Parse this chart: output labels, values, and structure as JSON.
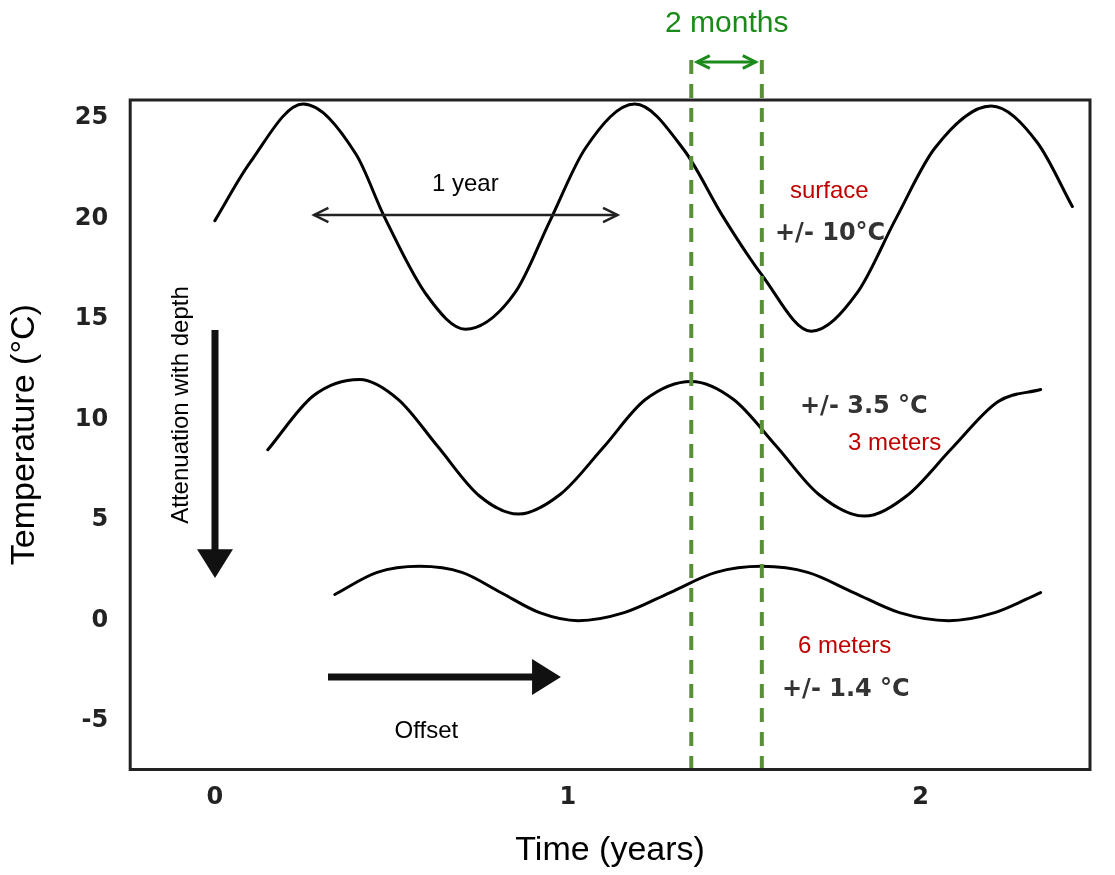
{
  "chart_data": {
    "type": "line",
    "xlabel": "Time (years)",
    "ylabel": "Temperature (°C)",
    "xlim": [
      -0.24,
      2.48
    ],
    "xticks": [
      0,
      1,
      2
    ],
    "ylim": [
      -7.4,
      25.9
    ],
    "yticks": [
      -5,
      0,
      5,
      10,
      15,
      20,
      25
    ],
    "grid": false,
    "legend": false,
    "marker": "none",
    "line_style": "solid",
    "series": [
      {
        "name": "surface",
        "color": "#000000",
        "x": [
          0,
          0.1,
          0.25,
          0.4,
          0.48,
          0.6,
          0.71,
          0.85,
          0.95,
          1.05,
          1.19,
          1.33,
          1.44,
          1.55,
          1.69,
          1.82,
          1.93,
          2.04,
          2.2,
          2.33,
          2.43
        ],
        "values": [
          19.9,
          22.8,
          25.7,
          23.2,
          20.1,
          16.2,
          14.5,
          16.3,
          19.9,
          23.5,
          25.7,
          23.4,
          20.1,
          17.2,
          14.4,
          16.3,
          20.0,
          23.5,
          25.6,
          23.8,
          20.6
        ]
      },
      {
        "name": "3 meters",
        "color": "#000000",
        "x": [
          0.15,
          0.28,
          0.41,
          0.52,
          0.63,
          0.75,
          0.86,
          0.98,
          1.1,
          1.22,
          1.35,
          1.47,
          1.59,
          1.71,
          1.84,
          1.96,
          2.09,
          2.22,
          2.34
        ],
        "values": [
          8.5,
          11.2,
          12.0,
          11.0,
          8.7,
          6.2,
          5.3,
          6.3,
          8.6,
          11.0,
          11.9,
          11.0,
          8.7,
          6.3,
          5.2,
          6.2,
          8.6,
          10.9,
          11.5
        ]
      },
      {
        "name": "6 meters",
        "color": "#000000",
        "x": [
          0.34,
          0.46,
          0.58,
          0.7,
          0.81,
          0.92,
          1.03,
          1.16,
          1.29,
          1.42,
          1.55,
          1.68,
          1.81,
          1.94,
          2.08,
          2.21,
          2.34
        ],
        "values": [
          1.3,
          2.4,
          2.7,
          2.4,
          1.4,
          0.4,
          0.0,
          0.4,
          1.4,
          2.4,
          2.7,
          2.4,
          1.4,
          0.4,
          0.0,
          0.4,
          1.4
        ]
      }
    ],
    "ref_lines": [
      {
        "axis": "x",
        "value": 1.35,
        "color": "#5a8f3a",
        "line_style": "dashed"
      },
      {
        "axis": "x",
        "value": 1.55,
        "color": "#5a8f3a",
        "line_style": "dashed"
      }
    ],
    "annotations": [
      "+/- 10°C",
      "+/- 3.5 °C",
      "+/- 1.4 °C",
      "1 year",
      "2 months",
      "Attenuation with depth",
      "Offset"
    ]
  }
}
